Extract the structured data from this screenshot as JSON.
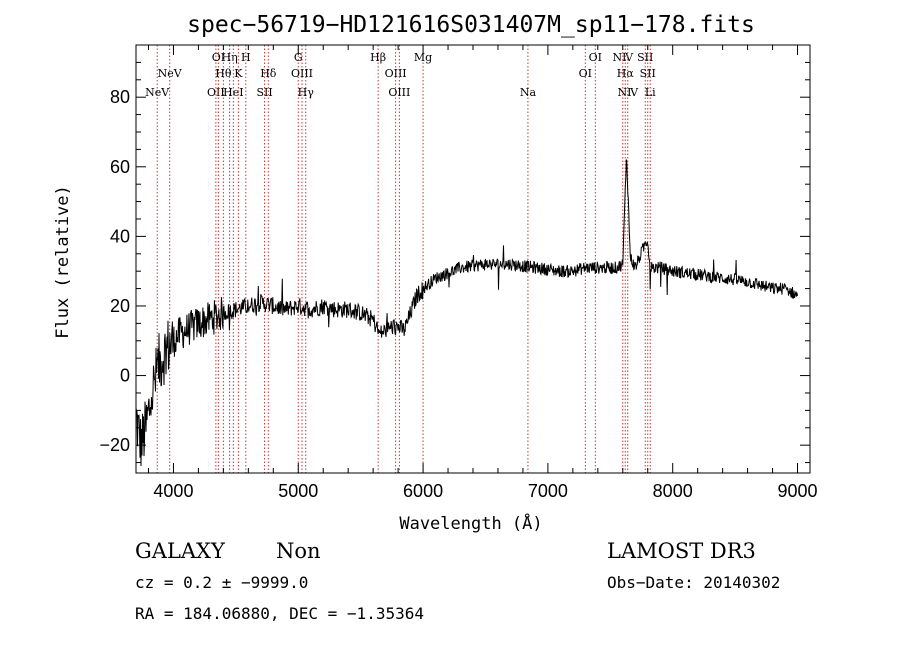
{
  "chart_data": {
    "type": "line",
    "title": "spec−56719−HD121616S031407M_sp11−178.fits",
    "xlabel": "Wavelength (Å)",
    "ylabel": "Flux (relative)",
    "xlim": [
      3700,
      9100
    ],
    "ylim": [
      -28,
      95
    ],
    "xticks": [
      4000,
      5000,
      6000,
      7000,
      8000,
      9000
    ],
    "yticks": [
      -20,
      0,
      20,
      40,
      60,
      80
    ],
    "grid": false,
    "spectrum_anchors": {
      "x": [
        3700,
        3740,
        3780,
        3830,
        3880,
        3950,
        4050,
        4200,
        4340,
        4400,
        4500,
        4600,
        4700,
        4800,
        4900,
        5000,
        5100,
        5200,
        5300,
        5400,
        5500,
        5600,
        5650,
        5700,
        5750,
        5800,
        5850,
        5900,
        5950,
        6000,
        6100,
        6300,
        6500,
        6700,
        6900,
        7100,
        7200,
        7300,
        7350,
        7400,
        7500,
        7550,
        7600,
        7630,
        7660,
        7700,
        7780,
        7800,
        7820,
        7900,
        8000,
        8200,
        8400,
        8600,
        8800,
        8900,
        9000
      ],
      "y": [
        -12,
        -20,
        -15,
        -5,
        3,
        8,
        12,
        15,
        17,
        18,
        19,
        20,
        21,
        20,
        19,
        20,
        19,
        20,
        19,
        19,
        18,
        16,
        12,
        13,
        14,
        14,
        13,
        18,
        23,
        25,
        28,
        31,
        32,
        32,
        31,
        30,
        30,
        31,
        31,
        31,
        31,
        31,
        32,
        64,
        34,
        31,
        38,
        39,
        31,
        31,
        30,
        29,
        28,
        27,
        25,
        25,
        23
      ]
    },
    "spectral_lines": [
      {
        "label": "NeV",
        "wavelength": 3870,
        "row": 3
      },
      {
        "label": "NeV",
        "wavelength": 3970,
        "row": 2
      },
      {
        "label": "OII",
        "wavelength": 4340,
        "row": 3
      },
      {
        "label": "OI",
        "wavelength": 4360,
        "row": 1
      },
      {
        "label": "Hη",
        "wavelength": 4450,
        "row": 1
      },
      {
        "label": "Hθ",
        "wavelength": 4400,
        "row": 2
      },
      {
        "label": "HeI",
        "wavelength": 4480,
        "row": 3
      },
      {
        "label": "H",
        "wavelength": 4580,
        "row": 1
      },
      {
        "label": "K",
        "wavelength": 4520,
        "row": 2
      },
      {
        "label": "SII",
        "wavelength": 4730,
        "row": 3
      },
      {
        "label": "Hδ",
        "wavelength": 4760,
        "row": 2
      },
      {
        "label": "G",
        "wavelength": 5000,
        "row": 1
      },
      {
        "label": "OIII",
        "wavelength": 5030,
        "row": 2
      },
      {
        "label": "Hγ",
        "wavelength": 5060,
        "row": 3
      },
      {
        "label": "Hβ",
        "wavelength": 5640,
        "row": 1
      },
      {
        "label": "OIII",
        "wavelength": 5780,
        "row": 2
      },
      {
        "label": "OIII",
        "wavelength": 5810,
        "row": 3
      },
      {
        "label": "Mg",
        "wavelength": 6000,
        "row": 1
      },
      {
        "label": "Na",
        "wavelength": 6840,
        "row": 3
      },
      {
        "label": "OI",
        "wavelength": 7300,
        "row": 2
      },
      {
        "label": "OI",
        "wavelength": 7380,
        "row": 1
      },
      {
        "label": "NⅣ",
        "wavelength": 7600,
        "row": 1
      },
      {
        "label": "Hα",
        "wavelength": 7620,
        "row": 2
      },
      {
        "label": "NⅣ",
        "wavelength": 7640,
        "row": 3
      },
      {
        "label": "SII",
        "wavelength": 7780,
        "row": 1
      },
      {
        "label": "SII",
        "wavelength": 7800,
        "row": 2
      },
      {
        "label": "Li",
        "wavelength": 7820,
        "row": 3
      }
    ],
    "colors": {
      "spectrum": "#000000",
      "lines": "#cc3333",
      "axis": "#000000"
    }
  },
  "info": {
    "object_class": "GALAXY",
    "subclass": "Non",
    "survey": "LAMOST DR3",
    "cz_text": "cz = 0.2 ± −9999.0",
    "obs_date_text": "Obs−Date: 20140302",
    "radec_text": "RA = 184.06880, DEC =  −1.35364"
  }
}
